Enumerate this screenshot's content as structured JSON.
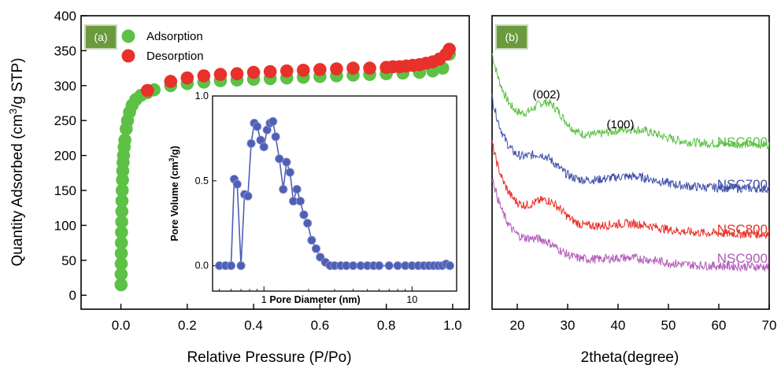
{
  "colors": {
    "adsorption": "#5cc145",
    "desorption": "#e8312a",
    "inset": "#4f5fb3",
    "panel_tag_fill": "#6b9a3e",
    "NSC600": "#5cc145",
    "NSC700": "#3f4fa8",
    "NSC800": "#e8312a",
    "NSC900": "#b05ab8"
  },
  "chart_data": [
    {
      "type": "scatter",
      "panel_label": "(a)",
      "xlabel": "Relative Pressure (P/Po)",
      "ylabel": "Quantity Adsorbed (cm³/g STP)",
      "xlim": [
        -0.12,
        1.05
      ],
      "ylim": [
        -20,
        400
      ],
      "xticks": [
        "0.0",
        "0.2",
        "0.4",
        "0.6",
        "0.8",
        "1.0"
      ],
      "yticks": [
        "0",
        "50",
        "100",
        "150",
        "200",
        "250",
        "300",
        "350",
        "400"
      ],
      "legend": {
        "position": "top-left",
        "entries": [
          "Adsorption",
          "Desorption"
        ]
      },
      "series": [
        {
          "name": "Adsorption",
          "x": [
            0.0005,
            0.0007,
            0.001,
            0.0013,
            0.0016,
            0.002,
            0.0024,
            0.0028,
            0.0033,
            0.004,
            0.0048,
            0.0056,
            0.0066,
            0.008,
            0.01,
            0.012,
            0.016,
            0.02,
            0.026,
            0.034,
            0.045,
            0.06,
            0.08,
            0.1,
            0.15,
            0.2,
            0.25,
            0.3,
            0.35,
            0.4,
            0.45,
            0.5,
            0.55,
            0.6,
            0.65,
            0.7,
            0.75,
            0.8,
            0.85,
            0.9,
            0.94,
            0.97,
            0.99
          ],
          "y": [
            15,
            30,
            45,
            60,
            75,
            90,
            105,
            120,
            135,
            150,
            165,
            178,
            190,
            200,
            212,
            222,
            238,
            250,
            262,
            272,
            280,
            286,
            290,
            294,
            300,
            303,
            305,
            307,
            308,
            309,
            310,
            311,
            312,
            313,
            314,
            315,
            316,
            317,
            318,
            319,
            321,
            325,
            345
          ]
        },
        {
          "name": "Desorption",
          "x": [
            0.99,
            0.98,
            0.96,
            0.94,
            0.92,
            0.9,
            0.88,
            0.86,
            0.84,
            0.82,
            0.8,
            0.75,
            0.7,
            0.65,
            0.6,
            0.55,
            0.5,
            0.45,
            0.4,
            0.35,
            0.3,
            0.25,
            0.2,
            0.15,
            0.08
          ],
          "y": [
            352,
            345,
            338,
            334,
            332,
            330,
            329,
            328,
            327,
            327,
            326,
            325,
            325,
            324,
            323,
            322,
            321,
            320,
            319,
            317,
            316,
            314,
            311,
            306,
            293
          ]
        }
      ],
      "inset": {
        "type": "line",
        "xlabel": "Pore Diameter (nm)",
        "ylabel": "Pore Volume (cm³/g)",
        "xscale": "log",
        "xlim": [
          0.45,
          20
        ],
        "ylim": [
          -0.15,
          1.0
        ],
        "xticks": [
          "1",
          "10"
        ],
        "yticks": [
          "0.0",
          "0.5",
          "1.0"
        ],
        "x": [
          0.5,
          0.55,
          0.6,
          0.63,
          0.66,
          0.7,
          0.74,
          0.78,
          0.82,
          0.86,
          0.9,
          0.95,
          1.0,
          1.05,
          1.1,
          1.15,
          1.2,
          1.27,
          1.35,
          1.42,
          1.5,
          1.58,
          1.67,
          1.76,
          1.86,
          1.97,
          2.1,
          2.25,
          2.4,
          2.6,
          2.8,
          3.0,
          3.3,
          3.6,
          4.0,
          4.5,
          5.0,
          5.5,
          6.0,
          7.0,
          8.0,
          9.0,
          10,
          11,
          12,
          13,
          14,
          15,
          16,
          17,
          18
        ],
        "y": [
          0.0,
          0.0,
          0.0,
          0.51,
          0.48,
          0.0,
          0.42,
          0.41,
          0.72,
          0.84,
          0.82,
          0.74,
          0.7,
          0.8,
          0.84,
          0.85,
          0.76,
          0.63,
          0.45,
          0.61,
          0.55,
          0.38,
          0.45,
          0.38,
          0.3,
          0.25,
          0.15,
          0.1,
          0.05,
          0.02,
          0.0,
          0.0,
          0.0,
          0.0,
          0.0,
          0.0,
          0.0,
          0.0,
          0.0,
          0.0,
          0.0,
          0.0,
          0.0,
          0.0,
          0.0,
          0.0,
          0.0,
          0.0,
          0.0,
          0.01,
          0.0
        ]
      }
    },
    {
      "type": "line",
      "panel_label": "(b)",
      "xlabel": "2theta(degree)",
      "xlim": [
        15,
        70
      ],
      "xticks": [
        "20",
        "30",
        "40",
        "50",
        "60",
        "70"
      ],
      "peak_labels": [
        {
          "text": "(002)",
          "x": 26
        },
        {
          "text": "(100)",
          "x": 41
        }
      ],
      "series": [
        {
          "name": "NSC600",
          "offset": 0.0,
          "peaks": [
            [
              26,
              0.18
            ],
            [
              43,
              0.07
            ]
          ],
          "base": 0.55
        },
        {
          "name": "NSC700",
          "offset": 0.0,
          "peaks": [
            [
              25,
              0.12
            ],
            [
              43,
              0.05
            ]
          ],
          "base": 0.28
        },
        {
          "name": "NSC800",
          "offset": 0.0,
          "peaks": [
            [
              26,
              0.13
            ],
            [
              43,
              0.04
            ]
          ],
          "base": 0.0
        },
        {
          "name": "NSC900",
          "offset": 0.0,
          "peaks": [
            [
              25,
              0.08
            ],
            [
              43,
              0.03
            ]
          ],
          "base": -0.2
        }
      ]
    }
  ]
}
